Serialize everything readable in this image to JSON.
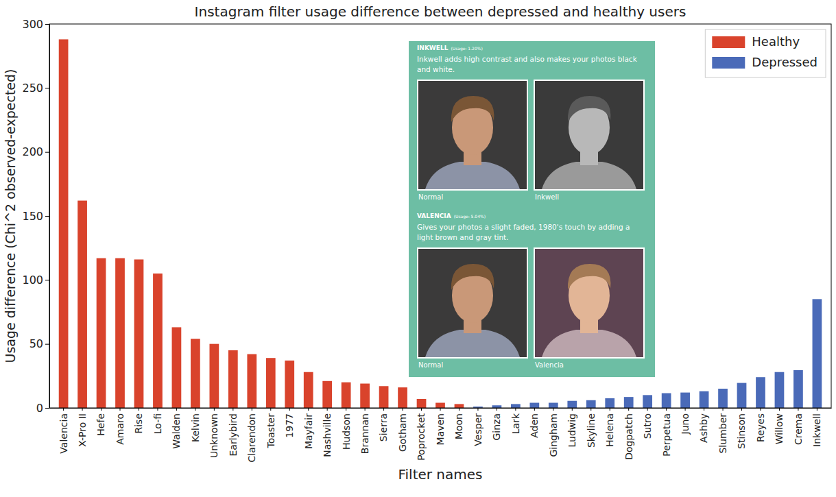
{
  "chart_data": {
    "type": "bar",
    "title": "Instagram filter usage difference between depressed and healthy users",
    "x_label": "Filter names",
    "y_label": "Usage difference (Chi^2 observed-expected)",
    "categories": [
      "Valencia",
      "X-Pro II",
      "Hefe",
      "Amaro",
      "Rise",
      "Lo-fi",
      "Walden",
      "Kelvin",
      "Unknown",
      "Earlybird",
      "Clarendon",
      "Toaster",
      "1977",
      "Mayfair",
      "Nashville",
      "Hudson",
      "Brannan",
      "Sierra",
      "Gotham",
      "Poprocket",
      "Maven",
      "Moon",
      "Vesper",
      "Ginza",
      "Lark",
      "Aden",
      "Gingham",
      "Ludwig",
      "Skyline",
      "Helena",
      "Dogpatch",
      "Sutro",
      "Perpetua",
      "Juno",
      "Ashby",
      "Slumber",
      "Stinson",
      "Reyes",
      "Willow",
      "Crema",
      "Inkwell"
    ],
    "series": [
      {
        "name": "Healthy",
        "color": "#d9432c",
        "values": [
          288,
          162,
          117,
          117,
          116,
          105,
          63,
          54,
          50,
          45,
          42,
          39,
          37,
          28,
          21,
          20,
          19,
          17,
          16,
          7,
          4,
          3,
          null,
          null,
          null,
          null,
          null,
          null,
          null,
          null,
          null,
          null,
          null,
          null,
          null,
          null,
          null,
          null,
          null,
          null,
          null
        ]
      },
      {
        "name": "Depressed",
        "color": "#4a6ab8",
        "values": [
          null,
          null,
          null,
          null,
          null,
          null,
          null,
          null,
          null,
          null,
          null,
          null,
          null,
          null,
          null,
          null,
          null,
          null,
          null,
          null,
          null,
          null,
          1,
          2,
          3,
          4,
          4,
          5.5,
          6,
          7.5,
          8.5,
          10,
          11.5,
          12,
          13,
          15,
          19.5,
          24,
          28,
          29.5,
          85
        ]
      }
    ],
    "ylim": [
      0,
      300
    ],
    "yticks": [
      0,
      50,
      100,
      150,
      200,
      250,
      300
    ],
    "grid": false,
    "legend": "upper right",
    "annotations": [
      {
        "title": "INKWELL",
        "usage": "(Usage: 1.20%)",
        "text": "Inkwell adds high contrast and also makes your photos black and white.",
        "images": [
          "Normal",
          "Inkwell"
        ]
      },
      {
        "title": "VALENCIA",
        "usage": "(Usage: 5.04%)",
        "text": "Gives your photos a slight faded, 1980's touch by adding a light brown and gray tint.",
        "images": [
          "Normal",
          "Valencia"
        ]
      }
    ]
  }
}
